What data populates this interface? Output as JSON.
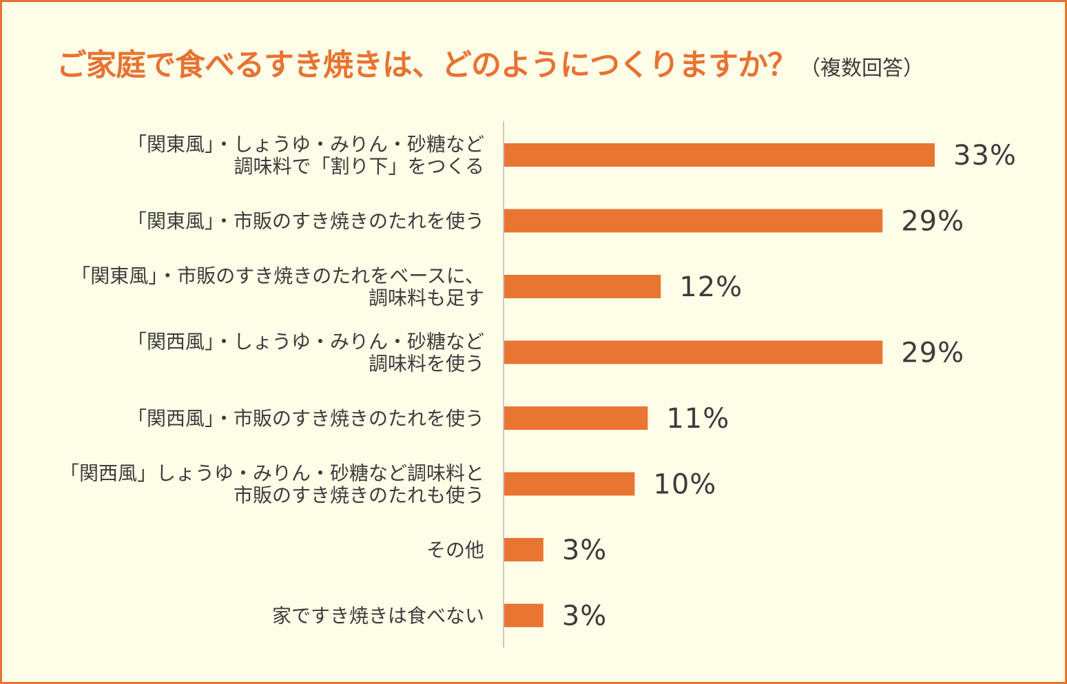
{
  "title": "ご家庭で食べるすき焼きは、どのようにつくりますか？",
  "subtitle": "（複数回答）",
  "colors": {
    "bar": "#e87532",
    "background": "#fefee8",
    "border": "#e77332",
    "title": "#e77332",
    "text": "#3c3c3c",
    "axis": "#c8c8c8"
  },
  "chart_data": {
    "type": "bar",
    "orientation": "horizontal",
    "title": "ご家庭で食べるすき焼きは、どのようにつくりますか？",
    "subtitle": "（複数回答）",
    "unit": "%",
    "xlim": [
      0,
      33
    ],
    "grid": false,
    "categories": [
      [
        "「関東風」・しょうゆ・みりん・砂糖など",
        "調味料で「割り下」をつくる"
      ],
      [
        "「関東風」・市販のすき焼きのたれを使う"
      ],
      [
        "「関東風」・市販のすき焼きのたれをベースに、",
        "調味料も足す"
      ],
      [
        "「関西風」・しょうゆ・みりん・砂糖など",
        "調味料を使う"
      ],
      [
        "「関西風」・市販のすき焼きのたれを使う"
      ],
      [
        "「関西風」しょうゆ・みりん・砂糖など調味料と",
        "市販のすき焼きのたれも使う"
      ],
      [
        "その他"
      ],
      [
        "家ですき焼きは食べない"
      ]
    ],
    "values": [
      33,
      29,
      12,
      29,
      11,
      10,
      3,
      3
    ],
    "value_labels": [
      "33%",
      "29%",
      "12%",
      "29%",
      "11%",
      "10%",
      "3%",
      "3%"
    ]
  }
}
